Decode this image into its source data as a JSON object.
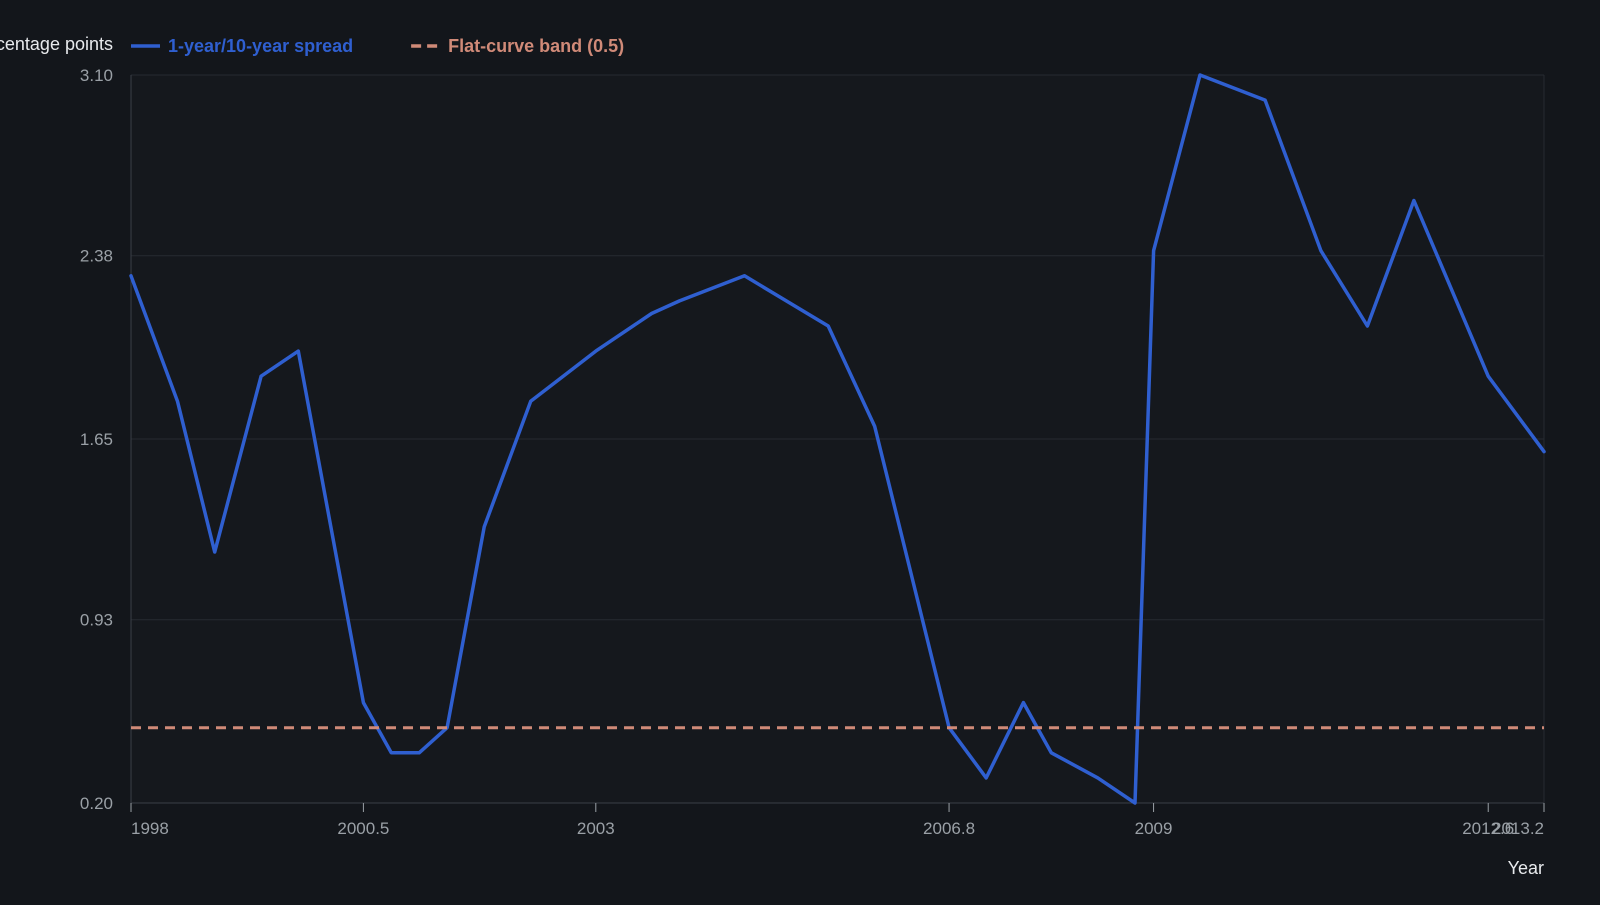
{
  "chart_data": {
    "type": "line",
    "title": "",
    "xlabel": "Year",
    "ylabel": "Percentage points",
    "xlim": [
      1998,
      2013.2
    ],
    "ylim": [
      0.2,
      3.1
    ],
    "x_ticks": [
      1998,
      2000.5,
      2003,
      2006.8,
      2009,
      2012.6,
      2013.2
    ],
    "x_tick_labels": [
      "1998",
      "2000.5",
      "2003",
      "2006.8",
      "2009",
      "2012.6",
      "2013.2"
    ],
    "y_ticks": [
      0.2,
      0.93,
      1.65,
      2.38,
      3.1
    ],
    "y_tick_labels": [
      "0.20",
      "0.93",
      "1.65",
      "2.38",
      "3.10"
    ],
    "grid": true,
    "legend_position": "top-left",
    "series": [
      {
        "name": "1-year/10-year spread",
        "color": "#2f5fd0",
        "style": "solid",
        "x": [
          1998,
          1998.5,
          1998.9,
          1999.4,
          1999.8,
          2000.5,
          2000.8,
          2001.1,
          2001.4,
          2001.8,
          2002.3,
          2003.0,
          2003.6,
          2003.9,
          2004.6,
          2005.5,
          2006.0,
          2006.8,
          2007.2,
          2007.6,
          2007.9,
          2008.4,
          2008.8,
          2009.0,
          2009.5,
          2010.2,
          2010.8,
          2011.3,
          2011.8,
          2012.6,
          2013.2
        ],
        "y": [
          2.3,
          1.8,
          1.2,
          1.9,
          2.0,
          0.6,
          0.4,
          0.4,
          0.5,
          1.3,
          1.8,
          2.0,
          2.15,
          2.2,
          2.3,
          2.1,
          1.7,
          0.5,
          0.3,
          0.6,
          0.4,
          0.3,
          0.2,
          2.4,
          3.1,
          3.0,
          2.4,
          2.1,
          2.6,
          1.9,
          1.6
        ]
      },
      {
        "name": "Flat-curve band (0.5)",
        "color": "#d08a78",
        "style": "dashed",
        "x": [
          1998,
          2013.2
        ],
        "y": [
          0.5,
          0.5
        ]
      }
    ]
  }
}
